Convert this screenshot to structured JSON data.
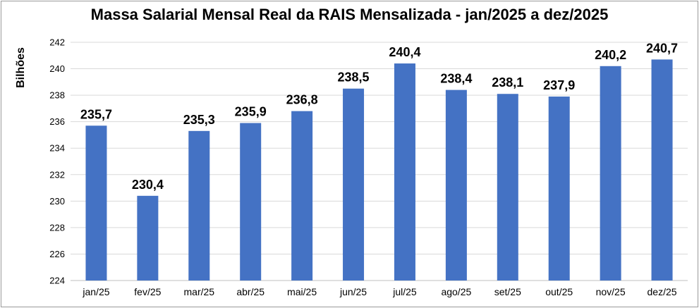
{
  "chart_data": {
    "type": "bar",
    "title": "Massa Salarial Mensal Real da RAIS Mensalizada - jan/2025 a dez/2025",
    "xlabel": "",
    "ylabel": "Bilhões",
    "categories": [
      "jan/25",
      "fev/25",
      "mar/25",
      "abr/25",
      "mai/25",
      "jun/25",
      "jul/25",
      "ago/25",
      "set/25",
      "out/25",
      "nov/25",
      "dez/25"
    ],
    "values": [
      235.7,
      230.4,
      235.3,
      235.9,
      236.8,
      238.5,
      240.4,
      238.4,
      238.1,
      237.9,
      240.2,
      240.7
    ],
    "data_labels": [
      "235,7",
      "230,4",
      "235,3",
      "235,9",
      "236,8",
      "238,5",
      "240,4",
      "238,4",
      "238,1",
      "237,9",
      "240,2",
      "240,7"
    ],
    "ylim": [
      224,
      242
    ],
    "yticks": [
      "224",
      "226",
      "228",
      "230",
      "232",
      "234",
      "236",
      "238",
      "240",
      "242"
    ],
    "grid": true,
    "bar_color": "#4472C4"
  }
}
